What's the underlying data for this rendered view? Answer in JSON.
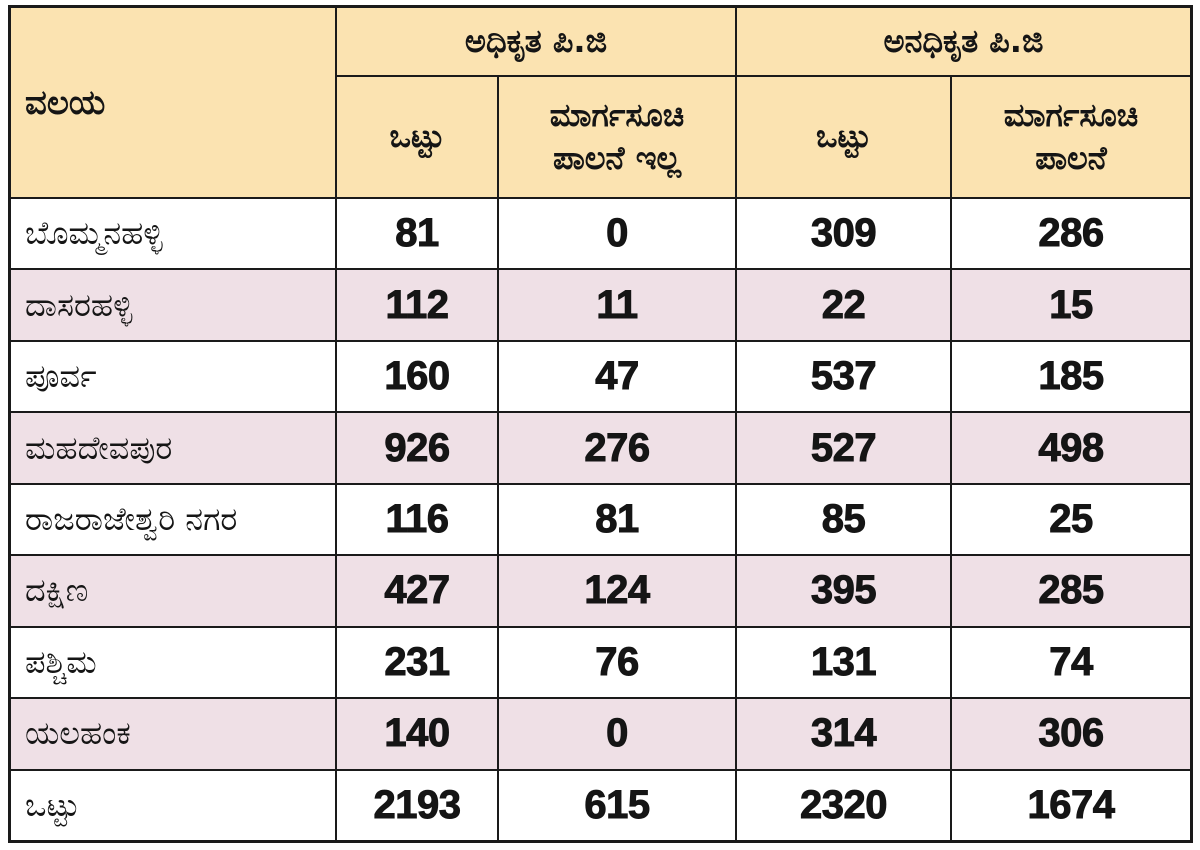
{
  "colors": {
    "header_bg": "#FBE3B1",
    "row_bg": "#FFFFFF",
    "row_alt_bg": "#EFE0E6",
    "grid_line": "#1A1A1A",
    "text": "#151515"
  },
  "chart_data": {
    "type": "table",
    "row_header": "ವಲಯ",
    "column_groups": [
      {
        "label": "ಅಧಿಕೃತ ಪಿ.ಜಿ",
        "columns": [
          {
            "label_lines": [
              "ಒಟ್ಟು"
            ]
          },
          {
            "label_lines": [
              "ಮಾರ್ಗಸೂಚಿ",
              "ಪಾಲನೆ ಇಲ್ಲ"
            ]
          }
        ]
      },
      {
        "label": "ಅನಧಿಕೃತ ಪಿ.ಜಿ",
        "columns": [
          {
            "label_lines": [
              "ಒಟ್ಟು"
            ]
          },
          {
            "label_lines": [
              "ಮಾರ್ಗಸೂಚಿ",
              "ಪಾಲನೆ"
            ]
          }
        ]
      }
    ],
    "rows": [
      {
        "zone": "ಬೊಮ್ಮನಹಳ್ಳಿ",
        "values": [
          81,
          0,
          309,
          286
        ]
      },
      {
        "zone": "ದಾಸರಹಳ್ಳಿ",
        "values": [
          112,
          11,
          22,
          15
        ]
      },
      {
        "zone": "ಪೂರ್ವ",
        "values": [
          160,
          47,
          537,
          185
        ]
      },
      {
        "zone": "ಮಹದೇವಪುರ",
        "values": [
          926,
          276,
          527,
          498
        ]
      },
      {
        "zone": "ರಾಜರಾಜೇಶ್ವರಿ ನಗರ",
        "values": [
          116,
          81,
          85,
          25
        ]
      },
      {
        "zone": "ದಕ್ಷಿಣ",
        "values": [
          427,
          124,
          395,
          285
        ]
      },
      {
        "zone": "ಪಶ್ಚಿಮ",
        "values": [
          231,
          76,
          131,
          74
        ]
      },
      {
        "zone": "ಯಲಹಂಕ",
        "values": [
          140,
          0,
          314,
          306
        ]
      }
    ],
    "total": {
      "label": "ಒಟ್ಟು",
      "values": [
        2193,
        615,
        2320,
        1674
      ]
    }
  }
}
